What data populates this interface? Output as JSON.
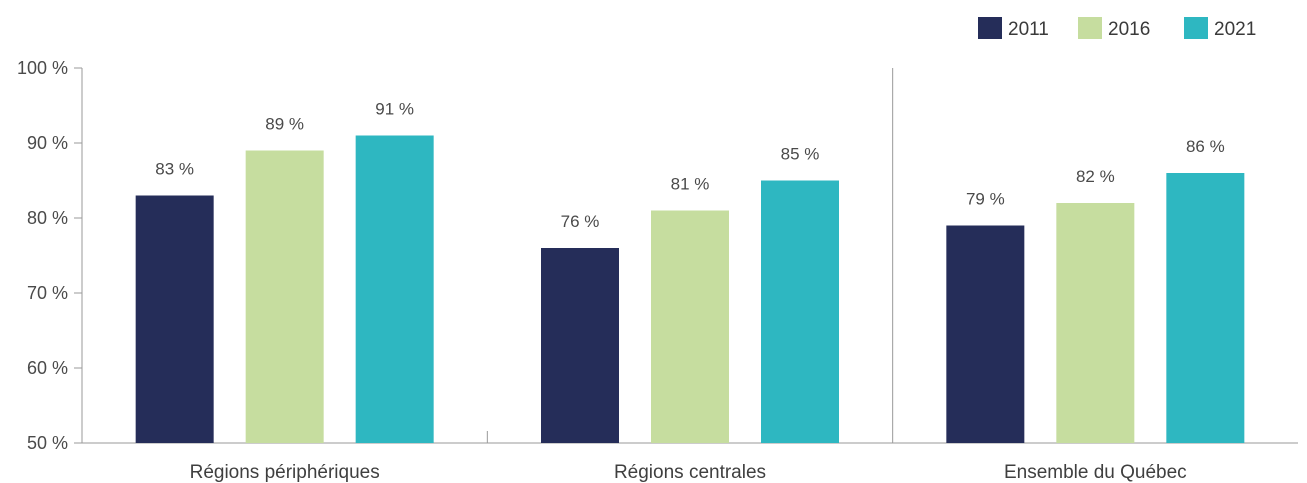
{
  "chart_data": {
    "type": "bar",
    "categories": [
      "Régions périphériques",
      "Régions centrales",
      "Ensemble du Québec"
    ],
    "series": [
      {
        "name": "2011",
        "values": [
          83,
          76,
          79
        ],
        "color": "#252d59"
      },
      {
        "name": "2016",
        "values": [
          89,
          81,
          82
        ],
        "color": "#c6dd9f"
      },
      {
        "name": "2021",
        "values": [
          91,
          85,
          86
        ],
        "color": "#2eb7c1"
      }
    ],
    "value_suffix": " %",
    "ylim": [
      50,
      100
    ],
    "yticks": [
      50,
      60,
      70,
      80,
      90,
      100
    ],
    "grid": false,
    "legend_position": "top-right",
    "title": "",
    "xlabel": "",
    "ylabel": ""
  }
}
